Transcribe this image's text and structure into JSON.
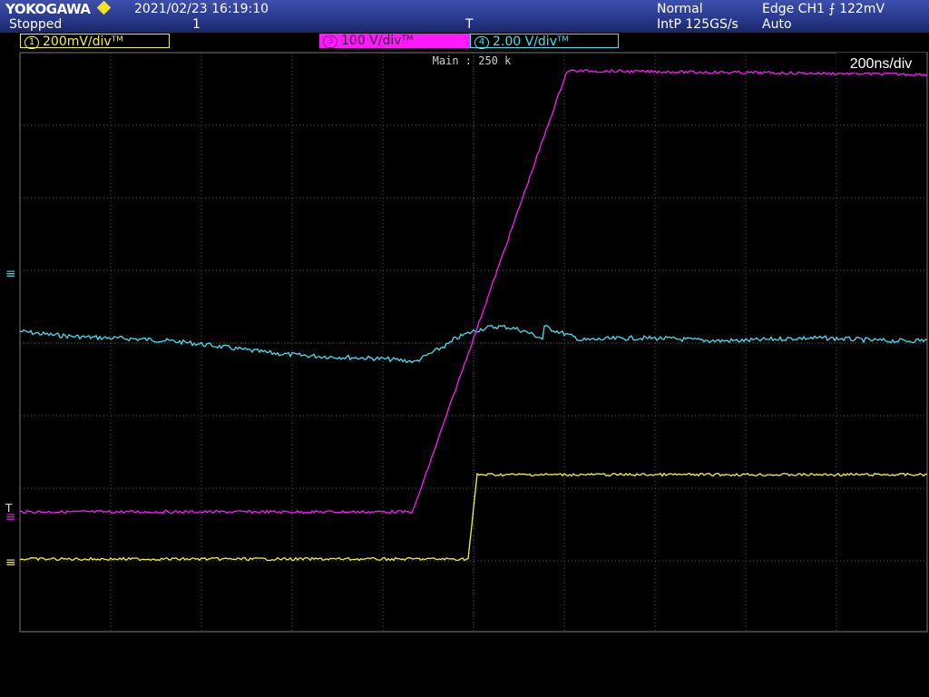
{
  "header": {
    "brand": "YOKOGAWA",
    "datetime": "2021/02/23 16:19:10",
    "status": "Stopped",
    "acq_count": "1",
    "trigger_marker": "T",
    "acq_mode": "Normal",
    "sample_rate": "IntP 125GS/s",
    "trigger": "Edge CH1 ⨍ 122mV",
    "trigger_mode": "Auto"
  },
  "channels": [
    {
      "num": "1",
      "scale": "200mV/div",
      "suffix": "ᵀᴹ",
      "color": "#f7f32b"
    },
    {
      "num": "3",
      "scale": "100 V/div",
      "suffix": "ᵀᴹ",
      "color": "#ff19ff"
    },
    {
      "num": "4",
      "scale": "2.00 V/div",
      "suffix": "ᵀᴹ",
      "color": "#3fe3f2"
    }
  ],
  "screen": {
    "zoom_label": "Main : 250 k",
    "timebase": "200ns/div",
    "grid_color": "#4a4a4a",
    "ground_markers": {
      "ch4": "≡",
      "ch3": "≡",
      "ch1": "≡",
      "trigger": "T"
    }
  },
  "colors": {
    "ch1": "#f7f32b",
    "ch3": "#ff19ff",
    "ch4": "#3fe3f2",
    "header_bg": "#2a3a8e"
  }
}
